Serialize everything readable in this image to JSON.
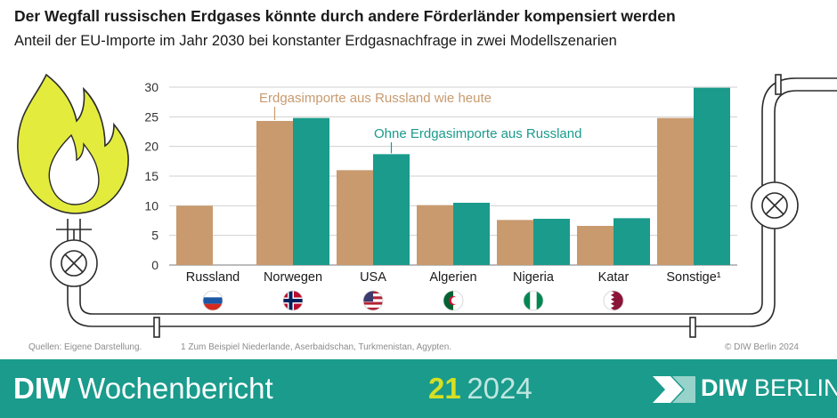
{
  "header": {
    "title": "Der Wegfall russischen Erdgases könnte durch andere Förderländer kompensiert werden",
    "subtitle": "Anteil der EU-Importe im Jahr 2030 bei konstanter Erdgasnachfrage in zwei Modellszenarien"
  },
  "chart_data": {
    "type": "bar",
    "title": "",
    "xlabel": "",
    "ylabel": "",
    "ylim": [
      0,
      30
    ],
    "yticks": [
      0,
      5,
      10,
      15,
      20,
      25,
      30
    ],
    "grid": true,
    "categories": [
      "Russland",
      "Norwegen",
      "USA",
      "Algerien",
      "Nigeria",
      "Katar",
      "Sonstige¹"
    ],
    "series": [
      {
        "name": "Erdgasimporte aus Russland wie heute",
        "color": "#c89a6e",
        "values": [
          10.0,
          24.3,
          16.0,
          10.1,
          7.6,
          6.6,
          24.8
        ]
      },
      {
        "name": "Ohne Erdgasimporte aus Russland",
        "color": "#1a9b8c",
        "values": [
          null,
          24.8,
          18.7,
          10.5,
          7.8,
          7.9,
          29.9
        ]
      }
    ],
    "legend": "inline annotations"
  },
  "flags": [
    "flag-russia-icon",
    "flag-norway-icon",
    "flag-usa-icon",
    "flag-algeria-icon",
    "flag-nigeria-icon",
    "flag-qatar-icon",
    "none"
  ],
  "colors": {
    "brown": "#c89a6e",
    "teal": "#1a9b8c",
    "flame": "#e3ec3c",
    "footer_band": "#1a9b8c"
  },
  "footer": {
    "source": "Quellen: Eigene Darstellung.",
    "footnote": "1  Zum Beispiel Niederlande, Aserbaidschan, Turkmenistan, Agypten.",
    "copyright": "© DIW Berlin 2024"
  },
  "band": {
    "brand_bold": "DIW",
    "brand_rest": "Wochenbericht",
    "issue": "21",
    "year": "2024",
    "logo_bold": "DIW",
    "logo_rest": "BERLIN"
  }
}
